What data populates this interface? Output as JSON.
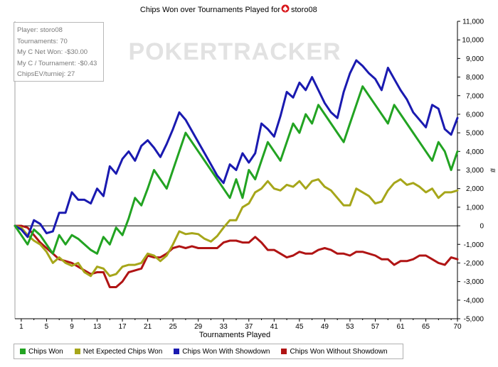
{
  "chart_data": {
    "type": "line",
    "title": "Chips Won over Tournaments Played for",
    "player_name": "storo08",
    "title_icon": "pokerstars-spade-icon",
    "watermark": "POKERTRACKER",
    "xlabel": "Tournaments Played",
    "ylabel": "#",
    "xlim": [
      0,
      70
    ],
    "ylim": [
      -5000,
      11000
    ],
    "x_ticks": [
      1,
      5,
      9,
      13,
      17,
      21,
      25,
      29,
      33,
      37,
      41,
      45,
      49,
      53,
      57,
      61,
      65,
      70
    ],
    "y_ticks": [
      -5000,
      -4000,
      -3000,
      -2000,
      -1000,
      0,
      1000,
      2000,
      3000,
      4000,
      5000,
      6000,
      7000,
      8000,
      9000,
      10000,
      11000
    ],
    "y_tick_labels": [
      "-5,000",
      "-4,000",
      "-3,000",
      "-2,000",
      "-1,000",
      "0",
      "1,000",
      "2,000",
      "3,000",
      "4,000",
      "5,000",
      "6,000",
      "7,000",
      "8,000",
      "9,000",
      "10,000",
      "11,000"
    ],
    "grid": false,
    "legend_position": "bottom",
    "info": [
      "Player: storo08",
      "Tournaments: 70",
      "My C Net Won: -$30.00",
      "My C / Tournament: -$0.43",
      "ChipsEV/turniej: 27"
    ],
    "series": [
      {
        "name": "Chips Won",
        "color": "#22a322",
        "x": [
          0,
          1,
          2,
          3,
          4,
          5,
          6,
          7,
          8,
          9,
          10,
          11,
          12,
          13,
          14,
          15,
          16,
          17,
          18,
          19,
          20,
          21,
          22,
          23,
          24,
          25,
          26,
          27,
          28,
          29,
          30,
          31,
          32,
          33,
          34,
          35,
          36,
          37,
          38,
          39,
          40,
          41,
          42,
          43,
          44,
          45,
          46,
          47,
          48,
          49,
          50,
          51,
          52,
          53,
          54,
          55,
          56,
          57,
          58,
          59,
          60,
          61,
          62,
          63,
          64,
          65,
          66,
          67,
          68,
          69,
          70
        ],
        "y": [
          0,
          -500,
          -1000,
          -200,
          -500,
          -1000,
          -1500,
          -500,
          -1000,
          -500,
          -700,
          -1000,
          -1300,
          -1500,
          -600,
          -1000,
          -100,
          -500,
          400,
          1500,
          1100,
          2000,
          3000,
          2500,
          2000,
          3000,
          4000,
          5000,
          4500,
          4000,
          3500,
          3000,
          2500,
          2000,
          1500,
          2500,
          1500,
          3000,
          2500,
          3500,
          4500,
          4000,
          3500,
          4500,
          5500,
          5000,
          6000,
          5500,
          6500,
          6000,
          5500,
          5000,
          4500,
          5500,
          6500,
          7500,
          7000,
          6500,
          6000,
          5500,
          6500,
          6000,
          5500,
          5000,
          4500,
          4000,
          3500,
          4500,
          4000,
          3000,
          4000
        ]
      },
      {
        "name": "Net Expected Chips Won",
        "color": "#a6a61a",
        "x": [
          0,
          1,
          2,
          3,
          4,
          5,
          6,
          7,
          8,
          9,
          10,
          11,
          12,
          13,
          14,
          15,
          16,
          17,
          18,
          19,
          20,
          21,
          22,
          23,
          24,
          25,
          26,
          27,
          28,
          29,
          30,
          31,
          32,
          33,
          34,
          35,
          36,
          37,
          38,
          39,
          40,
          41,
          42,
          43,
          44,
          45,
          46,
          47,
          48,
          49,
          50,
          51,
          52,
          53,
          54,
          55,
          56,
          57,
          58,
          59,
          60,
          61,
          62,
          63,
          64,
          65,
          66,
          67,
          68,
          69,
          70
        ],
        "y": [
          0,
          -100,
          -500,
          -800,
          -1000,
          -1400,
          -2000,
          -1700,
          -2000,
          -2150,
          -2000,
          -2500,
          -2700,
          -2200,
          -2300,
          -2700,
          -2600,
          -2200,
          -2100,
          -2100,
          -2000,
          -1500,
          -1600,
          -1900,
          -1600,
          -1000,
          -300,
          -450,
          -400,
          -450,
          -700,
          -850,
          -550,
          -100,
          300,
          300,
          1000,
          1200,
          1800,
          2000,
          2400,
          2000,
          1900,
          2200,
          2100,
          2400,
          2000,
          2400,
          2500,
          2100,
          1900,
          1500,
          1100,
          1100,
          2000,
          1800,
          1600,
          1200,
          1300,
          1900,
          2300,
          2500,
          2200,
          2300,
          2100,
          1800,
          2000,
          1500,
          1800,
          1800,
          1900
        ]
      },
      {
        "name": "Chips Won With Showdown",
        "color": "#1a1ab0",
        "x": [
          0,
          1,
          2,
          3,
          4,
          5,
          6,
          7,
          8,
          9,
          10,
          11,
          12,
          13,
          14,
          15,
          16,
          17,
          18,
          19,
          20,
          21,
          22,
          23,
          24,
          25,
          26,
          27,
          28,
          29,
          30,
          31,
          32,
          33,
          34,
          35,
          36,
          37,
          38,
          39,
          40,
          41,
          42,
          43,
          44,
          45,
          46,
          47,
          48,
          49,
          50,
          51,
          52,
          53,
          54,
          55,
          56,
          57,
          58,
          59,
          60,
          61,
          62,
          63,
          64,
          65,
          66,
          67,
          68,
          69,
          70
        ],
        "y": [
          0,
          -200,
          -600,
          300,
          100,
          -400,
          -300,
          700,
          700,
          1800,
          1400,
          1400,
          1200,
          2000,
          1600,
          3200,
          2800,
          3600,
          4000,
          3500,
          4300,
          4600,
          4200,
          3700,
          4400,
          5200,
          6100,
          5700,
          5100,
          4500,
          3900,
          3300,
          2700,
          2300,
          3300,
          3000,
          3900,
          3400,
          3900,
          5500,
          5200,
          4800,
          5900,
          7200,
          6900,
          7700,
          7300,
          8000,
          7300,
          6600,
          6100,
          5800,
          7200,
          8200,
          8900,
          8600,
          8200,
          7900,
          7300,
          8500,
          7900,
          7300,
          6800,
          6100,
          5700,
          5300,
          6500,
          6300,
          5200,
          4900,
          5800
        ]
      },
      {
        "name": "Chips Won Without Showdown",
        "color": "#b01414",
        "x": [
          0,
          1,
          2,
          3,
          4,
          5,
          6,
          7,
          8,
          9,
          10,
          11,
          12,
          13,
          14,
          15,
          16,
          17,
          18,
          19,
          20,
          21,
          22,
          23,
          24,
          25,
          26,
          27,
          28,
          29,
          30,
          31,
          32,
          33,
          34,
          35,
          36,
          37,
          38,
          39,
          40,
          41,
          42,
          43,
          44,
          45,
          46,
          47,
          48,
          49,
          50,
          51,
          52,
          53,
          54,
          55,
          56,
          57,
          58,
          59,
          60,
          61,
          62,
          63,
          64,
          65,
          66,
          67,
          68,
          69,
          70
        ],
        "y": [
          0,
          0,
          -100,
          -500,
          -900,
          -1200,
          -1500,
          -1800,
          -1900,
          -2000,
          -2200,
          -2400,
          -2600,
          -2500,
          -2500,
          -3300,
          -3300,
          -3000,
          -2500,
          -2400,
          -2300,
          -1600,
          -1700,
          -1700,
          -1500,
          -1200,
          -1100,
          -1200,
          -1100,
          -1200,
          -1200,
          -1200,
          -1200,
          -900,
          -800,
          -800,
          -900,
          -900,
          -600,
          -900,
          -1300,
          -1300,
          -1500,
          -1700,
          -1600,
          -1400,
          -1500,
          -1500,
          -1300,
          -1200,
          -1300,
          -1500,
          -1500,
          -1600,
          -1400,
          -1400,
          -1500,
          -1600,
          -1800,
          -1800,
          -2100,
          -1900,
          -1900,
          -1800,
          -1600,
          -1600,
          -1800,
          -2000,
          -2100,
          -1700,
          -1800
        ]
      }
    ]
  }
}
